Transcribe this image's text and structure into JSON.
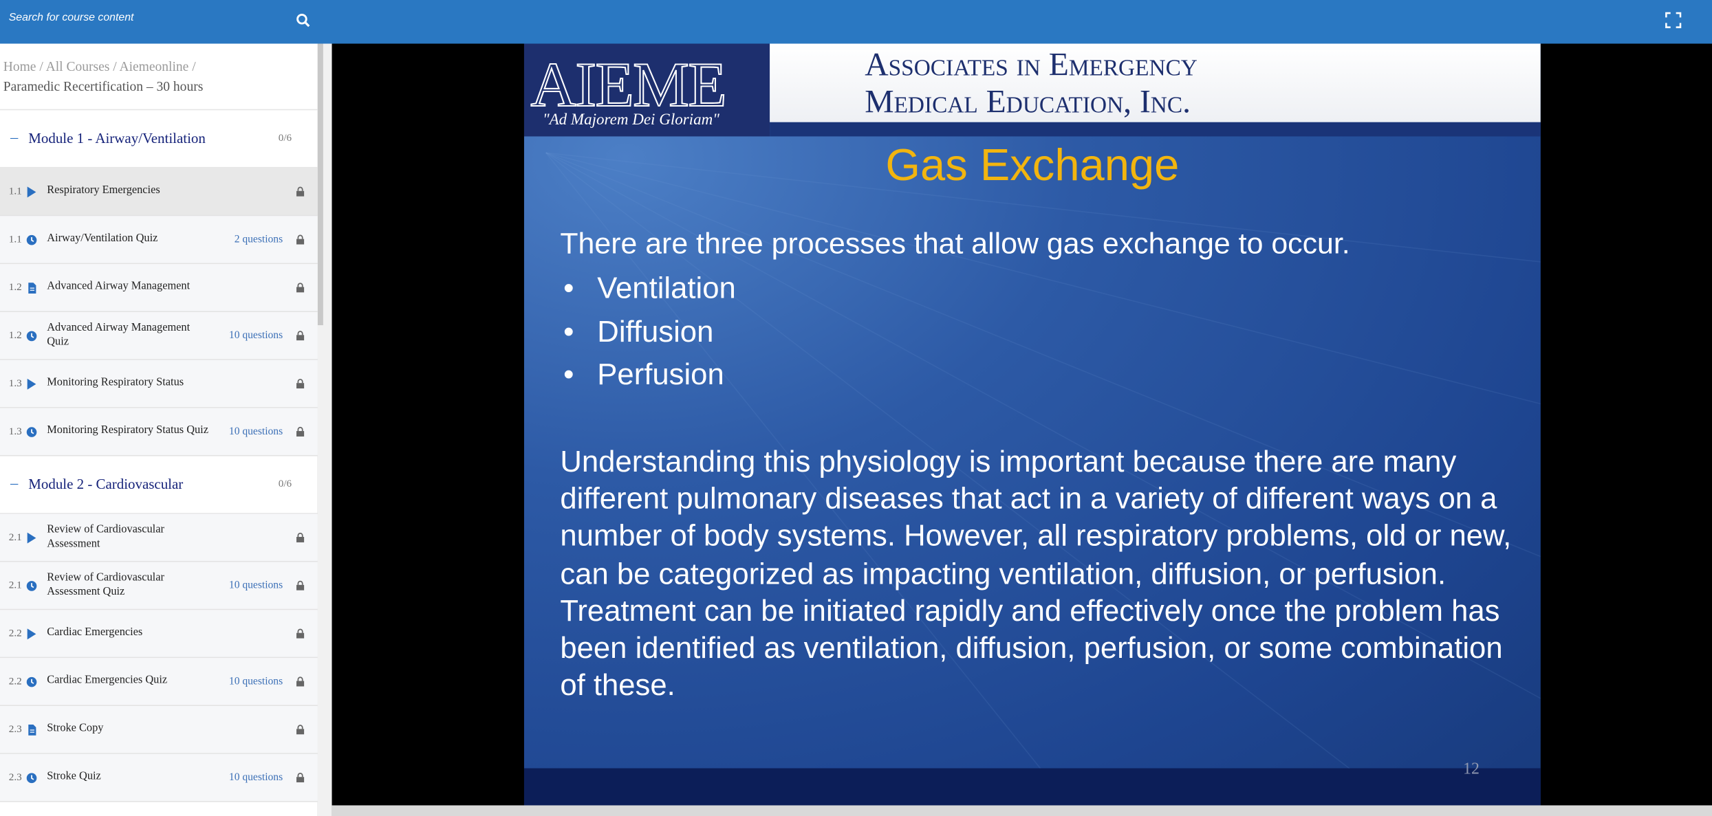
{
  "topbar": {
    "search_placeholder": "Search for course content"
  },
  "breadcrumb": {
    "items": [
      "Home",
      "All Courses",
      "Aiemeonline"
    ],
    "separator": "/",
    "current": "Paramedic Recertification – 30 hours"
  },
  "modules": [
    {
      "title": "Module 1 - Airway/Ventilation",
      "progress": "0/6",
      "items": [
        {
          "number": "1.1",
          "icon": "play",
          "title": "Respiratory Emergencies",
          "active": true
        },
        {
          "number": "1.1",
          "icon": "quiz",
          "title": "Airway/Ventilation Quiz",
          "meta": "2 questions"
        },
        {
          "number": "1.2",
          "icon": "doc",
          "title": "Advanced Airway Management"
        },
        {
          "number": "1.2",
          "icon": "quiz",
          "title": "Advanced Airway Management Quiz",
          "meta": "10 questions"
        },
        {
          "number": "1.3",
          "icon": "play",
          "title": "Monitoring Respiratory Status"
        },
        {
          "number": "1.3",
          "icon": "quiz",
          "title": "Monitoring Respiratory Status Quiz",
          "meta": "10 questions"
        }
      ]
    },
    {
      "title": "Module 2 - Cardiovascular",
      "progress": "0/6",
      "items": [
        {
          "number": "2.1",
          "icon": "play",
          "title": "Review of Cardiovascular Assessment"
        },
        {
          "number": "2.1",
          "icon": "quiz",
          "title": "Review of Cardiovascular Assessment Quiz",
          "meta": "10 questions"
        },
        {
          "number": "2.2",
          "icon": "play",
          "title": "Cardiac Emergencies"
        },
        {
          "number": "2.2",
          "icon": "quiz",
          "title": "Cardiac Emergencies Quiz",
          "meta": "10 questions"
        },
        {
          "number": "2.3",
          "icon": "doc",
          "title": "Stroke Copy"
        },
        {
          "number": "2.3",
          "icon": "quiz",
          "title": "Stroke Quiz",
          "meta": "10 questions"
        }
      ]
    }
  ],
  "slide": {
    "logo": "AIEME",
    "motto": "\"Ad Majorem Dei Gloriam\"",
    "company": [
      "Associates in Emergency",
      "Medical Education, Inc."
    ],
    "title": "Gas Exchange",
    "intro": "There are three processes that allow gas exchange to occur.",
    "bullets": [
      "Ventilation",
      "Diffusion",
      "Perfusion"
    ],
    "paragraph": "Understanding this physiology is important because there are many different pulmonary diseases that act in a variety of different ways on a number of body systems. However, all respiratory problems, old or new, can be categorized as impacting ventilation, diffusion, or perfusion. Treatment can be initiated rapidly and effectively once the problem has been identified as ventilation, diffusion, perfusion, or some combination of these.",
    "page_number": "12"
  }
}
